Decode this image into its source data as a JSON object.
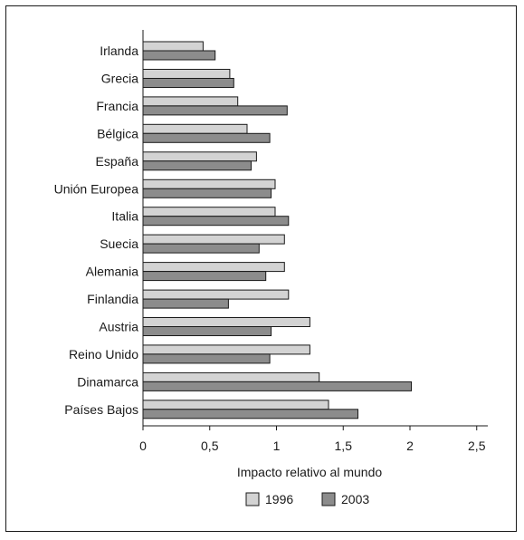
{
  "chart_data": {
    "type": "bar",
    "orientation": "horizontal",
    "categories": [
      "Irlanda",
      "Grecia",
      "Francia",
      "Bélgica",
      "España",
      "Unión Europea",
      "Italia",
      "Suecia",
      "Alemania",
      "Finlandia",
      "Austria",
      "Reino Unido",
      "Dinamarca",
      "Países Bajos"
    ],
    "series": [
      {
        "name": "1996",
        "color": "#d3d3d3",
        "values": [
          0.45,
          0.65,
          0.71,
          0.78,
          0.85,
          0.99,
          0.99,
          1.06,
          1.06,
          1.09,
          1.25,
          1.25,
          1.32,
          1.39
        ]
      },
      {
        "name": "2003",
        "color": "#8c8c8c",
        "values": [
          0.54,
          0.68,
          1.08,
          0.95,
          0.81,
          0.96,
          1.09,
          0.87,
          0.92,
          0.64,
          0.96,
          0.95,
          2.01,
          1.61
        ]
      }
    ],
    "xlabel": "Impacto relativo al mundo",
    "ylabel": "",
    "xlim": [
      0,
      2.5
    ],
    "xticks": [
      0,
      0.5,
      1,
      1.5,
      2,
      2.5
    ],
    "xtick_labels": [
      "0",
      "0,5",
      "1",
      "1,5",
      "2",
      "2,5"
    ],
    "grid": false,
    "legend_placement": "bottom-center"
  }
}
